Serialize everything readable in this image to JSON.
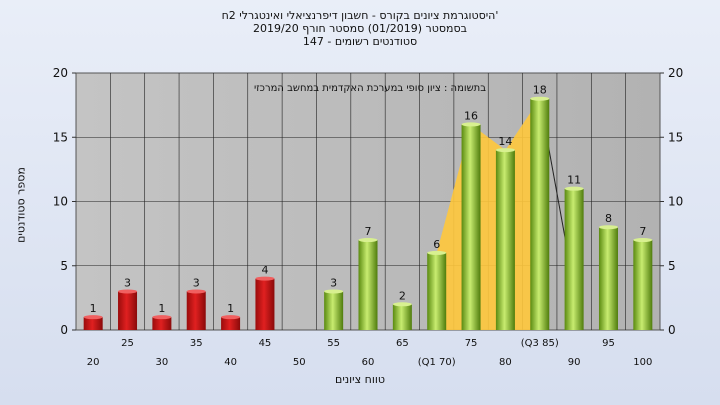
{
  "title_lines": [
    "היסטוגרמת ציונים בקורס - חשבון דיפרנציאלי ואינטגרלי 2ח'",
    "בסמסטר  (01/2019)  סמסטר חורף 2019/20",
    "סטודנטים רשומים - 147"
  ],
  "colors": {
    "fail_bar": "#e02020",
    "pass_bar": "#88c020",
    "quartile_area": "#ffc83c",
    "plot_bg": "#b2b2b2",
    "grid": "#202020"
  },
  "chart_data": {
    "type": "bar",
    "title": "היסטוגרמת ציונים בקורס - חשבון דיפרנציאלי ואינטגרלי 2ח'",
    "subtitle": "בסמסטר  (01/2019)  סמסטר חורף 2019/20 | סטודנטים רשומים - 147",
    "annotation": "בתשומה : ציון סופי במערכת האקדמית במחשב המרכזי",
    "xlabel": "טווח ציונים",
    "ylabel": "מספר סטודנטים",
    "ylim": [
      0,
      20
    ],
    "yticks": [
      0,
      5,
      10,
      15,
      20
    ],
    "categories": [
      "20",
      "25",
      "30",
      "35",
      "40",
      "45",
      "50",
      "55",
      "60",
      "65",
      "70",
      "75",
      "80",
      "85",
      "90",
      "95",
      "100"
    ],
    "category_labels": [
      "20",
      "25",
      "30",
      "35",
      "40",
      "45",
      "50",
      "55",
      "60",
      "65",
      "(Q1 70)",
      "75",
      "80",
      "(Q3 85)",
      "90",
      "95",
      "100"
    ],
    "values": [
      1,
      3,
      1,
      3,
      1,
      4,
      0,
      3,
      7,
      2,
      6,
      16,
      14,
      18,
      11,
      8,
      7
    ],
    "value_labels": [
      "1",
      "3",
      "1",
      "3",
      "1",
      "4",
      "",
      "3",
      "7",
      "2",
      "6",
      "16",
      "14",
      "18",
      "11",
      "8",
      "7"
    ],
    "bar_groups": [
      "fail",
      "fail",
      "fail",
      "fail",
      "fail",
      "fail",
      "fail",
      "pass",
      "pass",
      "pass",
      "pass",
      "pass",
      "pass",
      "pass",
      "pass",
      "pass",
      "pass"
    ],
    "quartiles": {
      "Q1": "70",
      "Q3": "85"
    },
    "grid": true,
    "legend": "none"
  }
}
